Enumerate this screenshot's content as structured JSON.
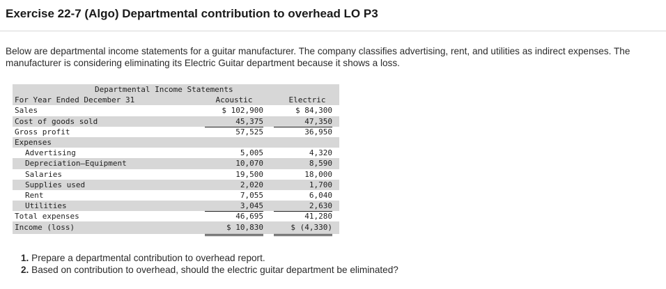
{
  "title": "Exercise 22-7 (Algo) Departmental contribution to overhead LO P3",
  "intro": "Below are departmental income statements for a guitar manufacturer. The company classifies advertising, rent, and utilities as indirect expenses. The manufacturer is considering eliminating its Electric Guitar department because it shows a loss.",
  "statement": {
    "title": "Departmental Income Statements",
    "period_label": "For Year Ended December 31",
    "col_acoustic": "Acoustic",
    "col_electric": "Electric",
    "rows": {
      "sales": {
        "label": "Sales",
        "acoustic": "$ 102,900",
        "electric": "$ 84,300"
      },
      "cogs": {
        "label": "Cost of goods sold",
        "acoustic": "45,375",
        "electric": "47,350"
      },
      "gross": {
        "label": "Gross profit",
        "acoustic": "57,525",
        "electric": "36,950"
      },
      "expenses": {
        "label": "Expenses"
      },
      "advertising": {
        "label": "Advertising",
        "acoustic": "5,005",
        "electric": "4,320"
      },
      "depreciation": {
        "label": "Depreciation—Equipment",
        "acoustic": "10,070",
        "electric": "8,590"
      },
      "salaries": {
        "label": "Salaries",
        "acoustic": "19,500",
        "electric": "18,000"
      },
      "supplies": {
        "label": "Supplies used",
        "acoustic": "2,020",
        "electric": "1,700"
      },
      "rent": {
        "label": "Rent",
        "acoustic": "7,055",
        "electric": "6,040"
      },
      "utilities": {
        "label": "Utilities",
        "acoustic": "3,045",
        "electric": "2,630"
      },
      "total_expenses": {
        "label": "Total expenses",
        "acoustic": "46,695",
        "electric": "41,280"
      },
      "income": {
        "label": "Income (loss)",
        "acoustic": "$ 10,830",
        "electric": "$ (4,330)"
      }
    }
  },
  "questions": [
    {
      "num": "1.",
      "text": "Prepare a departmental contribution to overhead report."
    },
    {
      "num": "2.",
      "text": "Based on contribution to overhead, should the electric guitar department be eliminated?"
    }
  ]
}
